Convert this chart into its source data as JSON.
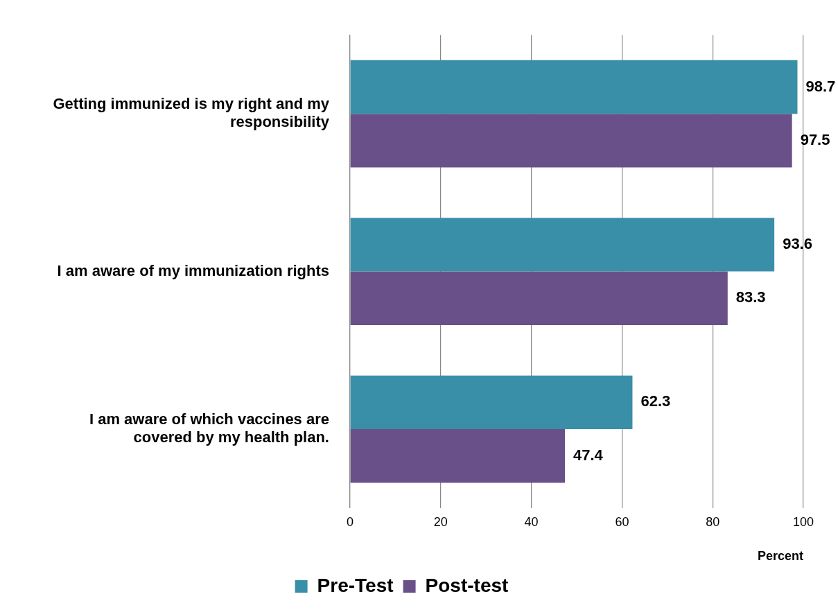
{
  "chart_data": {
    "type": "bar",
    "orientation": "horizontal",
    "xlabel": "Percent",
    "categories": [
      "Getting immunized is my right and my responsibility",
      "I am aware of my immunization rights",
      "I am aware of which vaccines are covered by my health plan."
    ],
    "series": [
      {
        "name": "Pre-Test",
        "color": "#3a8fa8",
        "values": [
          98.7,
          93.6,
          62.3
        ]
      },
      {
        "name": "Post-test",
        "color": "#6a5088",
        "values": [
          97.5,
          83.3,
          47.4
        ]
      }
    ],
    "xlim": [
      0,
      100
    ],
    "xticks": [
      0,
      20,
      40,
      60,
      80,
      100
    ],
    "grid": "x",
    "legend": "bottom",
    "data_labels": true
  }
}
